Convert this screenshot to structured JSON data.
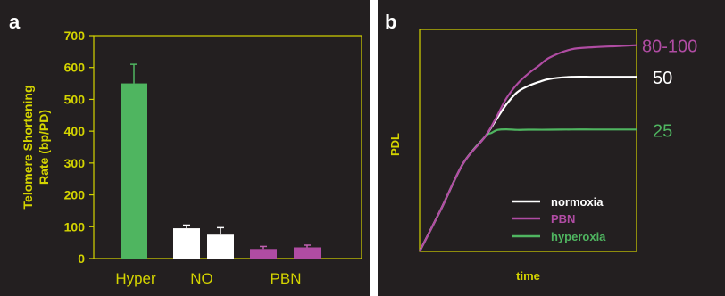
{
  "colors": {
    "background": "#231f20",
    "axis": "#d4d400",
    "axis_text": "#d4d400",
    "green": "#4fb560",
    "white": "#ffffff",
    "purple": "#b04ca3",
    "error_bar_purple": "#c060b0",
    "error_bar_green": "#4fb560"
  },
  "panels": {
    "a": {
      "letter": "a"
    },
    "b": {
      "letter": "b"
    }
  },
  "chart_data": [
    {
      "type": "bar",
      "panel": "a",
      "title": "",
      "ylabel": "Telomere Shortening Rate (bp/PD)",
      "ylabel_lines": [
        "Telomere Shortening",
        "Rate (bp/PD)"
      ],
      "xlabel": "",
      "ylim": [
        0,
        700
      ],
      "yticks": [
        0,
        100,
        200,
        300,
        400,
        500,
        600,
        700
      ],
      "group_labels": [
        "Hyper",
        "NO",
        "PBN"
      ],
      "bars": [
        {
          "group": "Hyper",
          "value": 550,
          "error": 60,
          "color": "#4fb560"
        },
        {
          "group": "NO",
          "value": 95,
          "error": 10,
          "color": "#ffffff"
        },
        {
          "group": "NO",
          "value": 75,
          "error": 22,
          "color": "#ffffff"
        },
        {
          "group": "PBN",
          "value": 30,
          "error": 8,
          "color": "#b04ca3"
        },
        {
          "group": "PBN",
          "value": 35,
          "error": 7,
          "color": "#b04ca3"
        }
      ],
      "grid": false
    },
    {
      "type": "line",
      "panel": "b",
      "title": "",
      "xlabel": "time",
      "ylabel": "PDL",
      "xlim": [
        0,
        100
      ],
      "ylim": [
        0,
        100
      ],
      "legend_position": "bottom-right",
      "series": [
        {
          "name": "normoxia",
          "color": "#ffffff",
          "end_label": "50",
          "x": [
            0,
            10,
            20,
            30,
            35,
            40,
            45,
            50,
            55,
            60,
            70,
            80,
            90,
            100
          ],
          "y": [
            0,
            21,
            43,
            56,
            64,
            72,
            78,
            81,
            83,
            84.5,
            85.5,
            85.5,
            85.5,
            85.5
          ]
        },
        {
          "name": "PBN",
          "color": "#b04ca3",
          "end_label": "80-100",
          "x": [
            0,
            10,
            20,
            30,
            35,
            40,
            45,
            50,
            55,
            60,
            70,
            80,
            90,
            100
          ],
          "y": [
            0,
            21,
            43,
            56,
            65,
            75,
            82,
            87,
            91,
            95,
            99,
            100,
            100.5,
            101
          ]
        },
        {
          "name": "hyperoxia",
          "color": "#4fb560",
          "end_label": "25",
          "x": [
            0,
            10,
            20,
            30,
            33,
            36,
            40,
            45,
            50,
            60,
            70,
            80,
            90,
            100
          ],
          "y": [
            0,
            21,
            43,
            56,
            58,
            59.5,
            59.8,
            59.5,
            59.6,
            59.6,
            59.7,
            59.7,
            59.7,
            59.7
          ]
        }
      ],
      "grid": false
    }
  ]
}
